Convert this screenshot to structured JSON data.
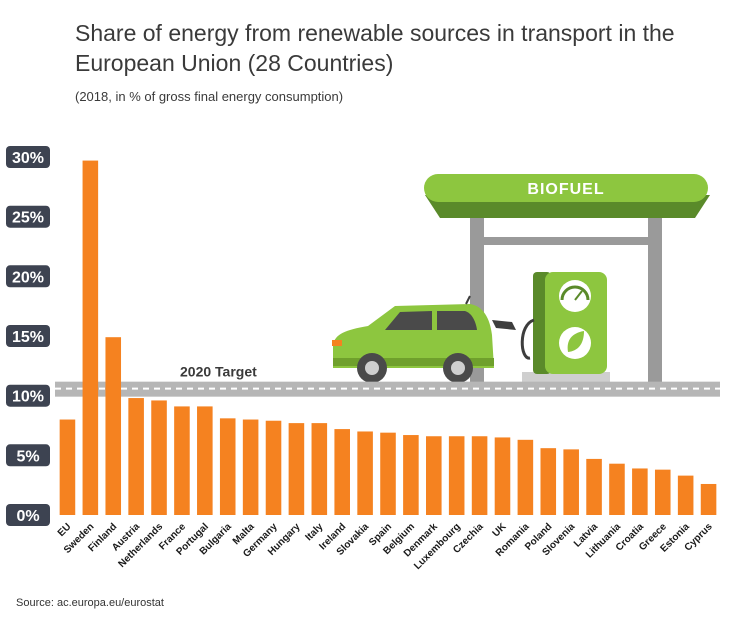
{
  "title": "Share of energy from renewable sources in transport in the European Union (28 Countries)",
  "subtitle": "(2018, in % of gross final energy consumption)",
  "source": "Source: ac.europa.eu/eurostat",
  "illustration": {
    "sign_text": "BIOFUEL"
  },
  "colors": {
    "bar": "#f58220",
    "axis_badge": "#3d4351",
    "road": "#b6b6b6",
    "sign": "#8dc63f",
    "sign_dark": "#5a8a2a",
    "car": "#8dc63f",
    "pump": "#6a9c3a"
  },
  "chart_data": {
    "type": "bar",
    "title": "Share of energy from renewable sources in transport in the European Union (28 Countries)",
    "subtitle": "(2018, in % of gross final energy consumption)",
    "categories": [
      "EU",
      "Sweden",
      "Finland",
      "Austria",
      "Netherlands",
      "France",
      "Portugal",
      "Bulgaria",
      "Malta",
      "Germany",
      "Hungary",
      "Italy",
      "Ireland",
      "Slovakia",
      "Spain",
      "Belgium",
      "Denmark",
      "Luxembourg",
      "Czechia",
      "UK",
      "Romania",
      "Poland",
      "Slovenia",
      "Latvia",
      "Lithuania",
      "Croatia",
      "Greece",
      "Estonia",
      "Cyprus"
    ],
    "values": [
      8.0,
      29.7,
      14.9,
      9.8,
      9.6,
      9.1,
      9.1,
      8.1,
      8.0,
      7.9,
      7.7,
      7.7,
      7.2,
      7.0,
      6.9,
      6.7,
      6.6,
      6.6,
      6.6,
      6.5,
      6.3,
      5.6,
      5.5,
      4.7,
      4.3,
      3.9,
      3.8,
      3.3,
      2.6
    ],
    "ylim": [
      0,
      30
    ],
    "yticks": [
      0,
      5,
      10,
      15,
      20,
      25,
      30
    ],
    "ytick_labels": [
      "0%",
      "5%",
      "10%",
      "15%",
      "20%",
      "25%",
      "30%"
    ],
    "target": {
      "label": "2020 Target",
      "value": 10
    },
    "grid": false,
    "legend": "none"
  }
}
